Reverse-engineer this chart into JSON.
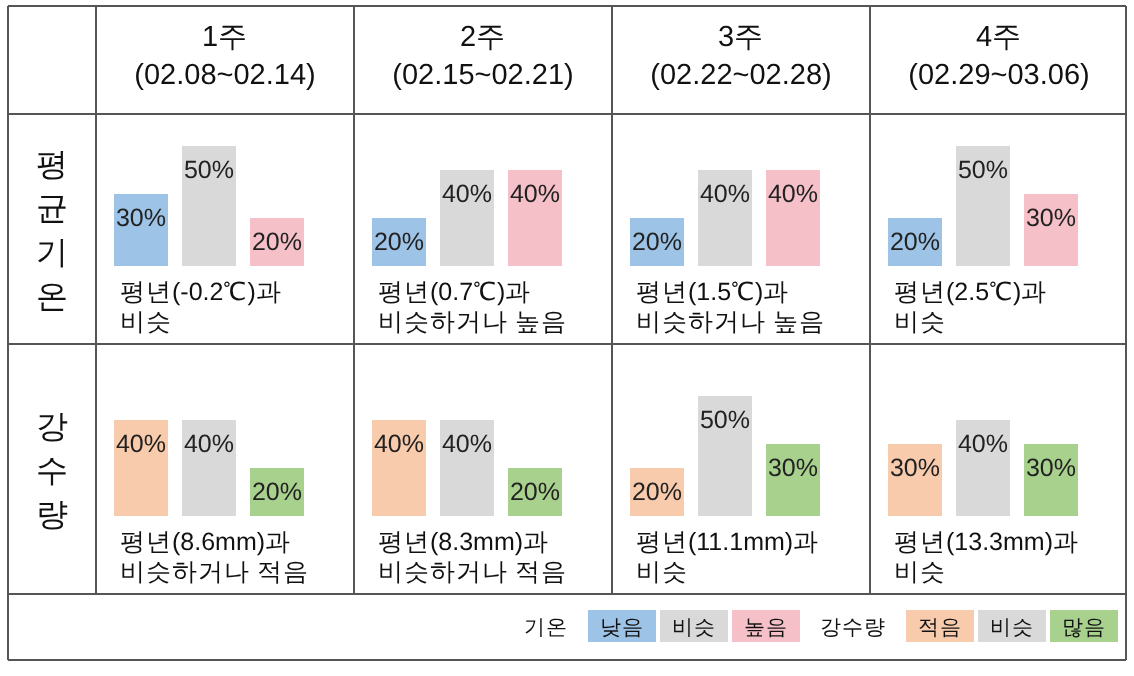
{
  "chart_data": [
    {
      "type": "bar",
      "title": "1주\n(02.08~02.14)",
      "ylabel": "평균기온",
      "categories": [
        null
      ],
      "series": [
        {
          "color": "#9dc3e6",
          "values": [
            30
          ],
          "value_labels": [
            "30%"
          ]
        },
        {
          "color": "#d9d9d9",
          "values": [
            50
          ],
          "value_labels": [
            "50%"
          ]
        },
        {
          "color": "#f6c0c8",
          "values": [
            20
          ],
          "value_labels": [
            "20%"
          ]
        }
      ],
      "annotations": [
        "평년(-0.2℃)과\n비슷"
      ]
    },
    {
      "type": "bar",
      "title": "2주\n(02.15~02.21)",
      "categories": [
        null
      ],
      "series": [
        {
          "color": "#9dc3e6",
          "values": [
            20
          ],
          "value_labels": [
            "20%"
          ]
        },
        {
          "color": "#d9d9d9",
          "values": [
            40
          ],
          "value_labels": [
            "40%"
          ]
        },
        {
          "color": "#f6c0c8",
          "values": [
            40
          ],
          "value_labels": [
            "40%"
          ]
        }
      ],
      "annotations": [
        "평년(0.7℃)과\n비슷하거나 높음"
      ]
    },
    {
      "type": "bar",
      "title": "3주\n(02.22~02.28)",
      "categories": [
        null
      ],
      "series": [
        {
          "color": "#9dc3e6",
          "values": [
            20
          ],
          "value_labels": [
            "20%"
          ]
        },
        {
          "color": "#d9d9d9",
          "values": [
            40
          ],
          "value_labels": [
            "40%"
          ]
        },
        {
          "color": "#f6c0c8",
          "values": [
            40
          ],
          "value_labels": [
            "40%"
          ]
        }
      ],
      "annotations": [
        "평년(1.5℃)과\n비슷하거나 높음"
      ]
    },
    {
      "type": "bar",
      "title": "4주\n(02.29~03.06)",
      "categories": [
        null
      ],
      "legend": "bottom",
      "legend_title": "기온",
      "series": [
        {
          "name": "낮음",
          "color": "#9dc3e6",
          "values": [
            20
          ],
          "value_labels": [
            "20%"
          ]
        },
        {
          "name": "비슷",
          "color": "#d9d9d9",
          "values": [
            50
          ],
          "value_labels": [
            "50%"
          ]
        },
        {
          "name": "높음",
          "color": "#f6c0c8",
          "values": [
            30
          ],
          "value_labels": [
            "30%"
          ]
        }
      ],
      "annotations": [
        "평년(2.5℃)과\n비슷"
      ]
    },
    {
      "type": "bar",
      "ylabel": "강수량",
      "categories": [
        null
      ],
      "series": [
        {
          "color": "#f8cbad",
          "values": [
            40
          ],
          "value_labels": [
            "40%"
          ]
        },
        {
          "color": "#d9d9d9",
          "values": [
            40
          ],
          "value_labels": [
            "40%"
          ]
        },
        {
          "color": "#a9d18e",
          "values": [
            20
          ],
          "value_labels": [
            "20%"
          ]
        }
      ],
      "annotations": [
        "평년(8.6mm)과\n비슷하거나 적음"
      ]
    },
    {
      "type": "bar",
      "categories": [
        null
      ],
      "series": [
        {
          "color": "#f8cbad",
          "values": [
            40
          ],
          "value_labels": [
            "40%"
          ]
        },
        {
          "color": "#d9d9d9",
          "values": [
            40
          ],
          "value_labels": [
            "40%"
          ]
        },
        {
          "color": "#a9d18e",
          "values": [
            20
          ],
          "value_labels": [
            "20%"
          ]
        }
      ],
      "annotations": [
        "평년(8.3mm)과\n비슷하거나 적음"
      ]
    },
    {
      "type": "bar",
      "categories": [
        null
      ],
      "series": [
        {
          "color": "#f8cbad",
          "values": [
            20
          ],
          "value_labels": [
            "20%"
          ]
        },
        {
          "color": "#d9d9d9",
          "values": [
            50
          ],
          "value_labels": [
            "50%"
          ]
        },
        {
          "color": "#a9d18e",
          "values": [
            30
          ],
          "value_labels": [
            "30%"
          ]
        }
      ],
      "annotations": [
        "평년(11.1mm)과\n비슷"
      ]
    },
    {
      "type": "bar",
      "categories": [
        null
      ],
      "legend": "bottom",
      "legend_title": "강수량",
      "series": [
        {
          "name": "적음",
          "color": "#f8cbad",
          "values": [
            30
          ],
          "value_labels": [
            "30%"
          ]
        },
        {
          "name": "비슷",
          "color": "#d9d9d9",
          "values": [
            40
          ],
          "value_labels": [
            "40%"
          ]
        },
        {
          "name": "많음",
          "color": "#a9d18e",
          "values": [
            30
          ],
          "value_labels": [
            "30%"
          ]
        }
      ],
      "annotations": [
        "평년(13.3mm)과\n비슷"
      ]
    }
  ]
}
